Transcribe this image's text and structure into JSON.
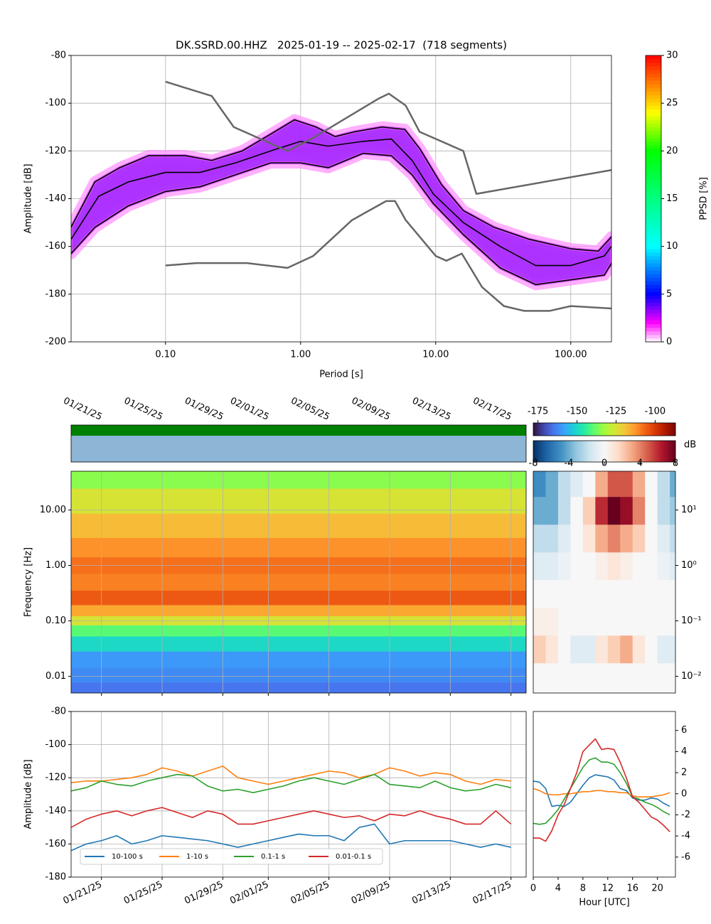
{
  "chart_data": [
    {
      "type": "line",
      "title": "DK.SSRD.00.HHZ   2025-01-19 -- 2025-02-17  (718 segments)",
      "xlabel": "Period [s]",
      "ylabel": "Amplitude [dB]",
      "xscale": "log",
      "xlim": [
        0.02,
        200
      ],
      "ylim": [
        -200,
        -80
      ],
      "xticks": [
        {
          "value": 0.1,
          "label": "0.10"
        },
        {
          "value": 1,
          "label": "1.00"
        },
        {
          "value": 10,
          "label": "10.00"
        },
        {
          "value": 100,
          "label": "100.00"
        }
      ],
      "yticks": [
        -200,
        -180,
        -160,
        -140,
        -120,
        -100,
        -80
      ],
      "grid": true,
      "density_band": true,
      "series": [
        {
          "color": "#000000",
          "x": [
            0.02,
            0.03,
            0.046,
            0.075,
            0.14,
            0.22,
            0.37,
            0.6,
            0.9,
            1.3,
            1.8,
            2.5,
            4,
            5.9,
            7.6,
            11,
            16,
            27,
            49,
            100,
            160,
            200
          ],
          "values": [
            -152,
            -133,
            -127,
            -122,
            -122,
            -124,
            -120,
            -113,
            -107,
            -110,
            -114,
            -112,
            -110,
            -111,
            -119,
            -134,
            -145,
            -152,
            -157,
            -161,
            -162,
            -156
          ]
        },
        {
          "color": "#000000",
          "x": [
            0.02,
            0.032,
            0.053,
            0.1,
            0.18,
            0.33,
            0.6,
            1,
            1.6,
            2.9,
            4.7,
            6.7,
            9.6,
            16,
            30,
            55,
            100,
            177,
            200
          ],
          "values": [
            -157,
            -139,
            -133,
            -129,
            -129,
            -125,
            -120,
            -116,
            -118,
            -116,
            -115,
            -124,
            -138,
            -150,
            -160,
            -168,
            -168,
            -164,
            -160
          ]
        },
        {
          "color": "#000000",
          "x": [
            0.02,
            0.03,
            0.053,
            0.1,
            0.18,
            0.33,
            0.6,
            1,
            1.6,
            2.9,
            4.7,
            6.7,
            9.6,
            16,
            30,
            55,
            100,
            177,
            200
          ],
          "values": [
            -163,
            -152,
            -143,
            -137,
            -135,
            -130,
            -125,
            -125,
            -127,
            -121,
            -122,
            -130,
            -142,
            -155,
            -169,
            -176,
            -174,
            -172,
            -167
          ]
        },
        {
          "color": "#666666",
          "x": [
            0.1,
            0.22,
            0.32,
            0.8,
            1.2,
            3.8,
            4.5,
            6,
            7.6,
            16,
            20,
            200
          ],
          "values": [
            -91,
            -97,
            -110,
            -120,
            -115,
            -98,
            -96,
            -101,
            -112,
            -120,
            -138,
            -128
          ]
        },
        {
          "color": "#666666",
          "x": [
            0.1,
            0.17,
            0.4,
            0.8,
            1.24,
            2.4,
            4.3,
            5,
            6,
            10,
            12,
            15.6,
            22,
            32,
            45,
            70,
            100,
            200
          ],
          "values": [
            -168,
            -167,
            -167,
            -169,
            -164,
            -149,
            -141,
            -141,
            -149,
            -164,
            -166,
            -163,
            -177,
            -185,
            -187,
            -187,
            -185,
            -186
          ]
        }
      ],
      "colorbar": {
        "label": "PPSD [%]",
        "lim": [
          0,
          30
        ],
        "ticks": [
          0,
          5,
          10,
          15,
          20,
          25,
          30
        ],
        "colormap": [
          {
            "value": 0,
            "color": "#ffffff"
          },
          {
            "value": 2,
            "color": "#ff00ff"
          },
          {
            "value": 3.5,
            "color": "#8000ff"
          },
          {
            "value": 5,
            "color": "#0000ff"
          },
          {
            "value": 10,
            "color": "#00ffff"
          },
          {
            "value": 20,
            "color": "#00ff00"
          },
          {
            "value": 24,
            "color": "#ffff00"
          },
          {
            "value": 30,
            "color": "#ff0000"
          }
        ]
      }
    },
    {
      "type": "heatmap",
      "ylabel": "Frequency [Hz]",
      "xscale": "date",
      "yscale": "log",
      "xlim": [
        "01/19/25",
        "02/18/25"
      ],
      "ylim": [
        0.005,
        50
      ],
      "xticks": [
        "01/21/25",
        "01/25/25",
        "01/29/25",
        "02/01/25",
        "02/05/25",
        "02/09/25",
        "02/13/25",
        "02/17/25"
      ],
      "yticks": [
        {
          "value": 0.01,
          "label": "0.01"
        },
        {
          "value": 0.1,
          "label": "0.10"
        },
        {
          "value": 1,
          "label": "1.00"
        },
        {
          "value": 10,
          "label": "10.00"
        }
      ],
      "grid": true,
      "xtick_labels": "top",
      "frequencies": [
        0.006,
        0.01,
        0.02,
        0.04,
        0.07,
        0.1,
        0.15,
        0.25,
        0.5,
        1,
        2,
        5,
        15,
        40
      ],
      "values": [
        -165,
        -162,
        -160,
        -150,
        -140,
        -125,
        -115,
        -105,
        -110,
        -108,
        -112,
        -118,
        -125,
        -135
      ],
      "colorbar": {
        "lim": [
          -178,
          -87
        ],
        "ticks": [
          -175,
          -150,
          -125,
          -100
        ],
        "colormap": [
          "#30123b",
          "#4145ab",
          "#4675ed",
          "#39a2fc",
          "#1bcfd4",
          "#24eca6",
          "#61fc6c",
          "#a4fc3b",
          "#d1e834",
          "#f3c63a",
          "#fe9b2d",
          "#f36315",
          "#d93806",
          "#b11901",
          "#7a0402"
        ]
      }
    },
    {
      "type": "heatmap",
      "yscale": "log",
      "xlim": [
        0,
        22.9
      ],
      "ylim": [
        0.005,
        50
      ],
      "yaxis": "right",
      "yticks": [
        {
          "value": 0.01,
          "label": "10⁻²"
        },
        {
          "value": 0.1,
          "label": "10⁻¹"
        },
        {
          "value": 1,
          "label": "10⁰"
        },
        {
          "value": 10,
          "label": "10¹"
        }
      ],
      "x": [
        0,
        2,
        4,
        6,
        8,
        10,
        12,
        14,
        16,
        18,
        20,
        22
      ],
      "frequencies": [
        0.01,
        0.03,
        0.1,
        0.3,
        1,
        3,
        10,
        30
      ],
      "values": [
        [
          0,
          0,
          0,
          0,
          0,
          0,
          0,
          0,
          0,
          0,
          0,
          0
        ],
        [
          2,
          1,
          0,
          -1,
          -1,
          1,
          2,
          3,
          1,
          0,
          -1,
          -1
        ],
        [
          0.5,
          0.5,
          0,
          0,
          0,
          0,
          0,
          0,
          0,
          0,
          0,
          0
        ],
        [
          0,
          0,
          0,
          0,
          0,
          0,
          0,
          0,
          0,
          0,
          0,
          0
        ],
        [
          -1,
          -1,
          -0.5,
          0,
          0,
          0.5,
          1,
          0.5,
          0,
          0,
          -0.5,
          -1
        ],
        [
          -2,
          -2,
          -1,
          0,
          1,
          3,
          4,
          3,
          2,
          0,
          -1,
          -2
        ],
        [
          -4,
          -4,
          -2,
          0,
          2,
          6,
          8,
          7,
          4,
          0,
          -2,
          -3
        ],
        [
          -5,
          -4,
          -2,
          -1,
          0,
          3,
          5,
          5,
          3,
          0,
          -2,
          -4
        ]
      ],
      "colorbar": {
        "label": "dB",
        "lim": [
          -8,
          8
        ],
        "ticks": [
          -8,
          -4,
          0,
          4,
          8
        ],
        "colormap": [
          "#053061",
          "#2166ac",
          "#4393c3",
          "#92c5de",
          "#d1e5f0",
          "#f7f7f7",
          "#fddbc7",
          "#f4a582",
          "#d6604d",
          "#b2182b",
          "#67001f"
        ]
      }
    },
    {
      "type": "line",
      "ylabel": "Amplitude [dB]",
      "xscale": "date",
      "xlim": [
        "01/19/25",
        "02/18/25"
      ],
      "ylim": [
        -180,
        -80
      ],
      "xticks": [
        "01/21/25",
        "01/25/25",
        "01/29/25",
        "02/01/25",
        "02/05/25",
        "02/09/25",
        "02/13/25",
        "02/17/25"
      ],
      "yticks": [
        -180,
        -160,
        -140,
        -120,
        -100,
        -80
      ],
      "grid": true,
      "legend": "lower left",
      "x": [
        "01/19/25",
        "01/20/25",
        "01/21/25",
        "01/22/25",
        "01/23/25",
        "01/24/25",
        "01/25/25",
        "01/26/25",
        "01/27/25",
        "01/28/25",
        "01/29/25",
        "01/30/25",
        "01/31/25",
        "02/01/25",
        "02/02/25",
        "02/03/25",
        "02/04/25",
        "02/05/25",
        "02/06/25",
        "02/07/25",
        "02/08/25",
        "02/09/25",
        "02/10/25",
        "02/11/25",
        "02/12/25",
        "02/13/25",
        "02/14/25",
        "02/15/25",
        "02/16/25",
        "02/17/25"
      ],
      "series": [
        {
          "name": "10-100 s",
          "color": "#1f77b4",
          "values": [
            -164,
            -160,
            -158,
            -155,
            -160,
            -158,
            -155,
            -156,
            -157,
            -158,
            -160,
            -162,
            -160,
            -158,
            -156,
            -154,
            -155,
            -155,
            -158,
            -150,
            -148,
            -160,
            -158,
            -158,
            -158,
            -158,
            -160,
            -162,
            -160,
            -162
          ]
        },
        {
          "name": "1-10 s",
          "color": "#ff7f0e",
          "values": [
            -123,
            -122,
            -122,
            -121,
            -120,
            -118,
            -114,
            -116,
            -119,
            -116,
            -113,
            -120,
            -122,
            -124,
            -122,
            -120,
            -118,
            -116,
            -117,
            -120,
            -118,
            -114,
            -116,
            -119,
            -117,
            -118,
            -122,
            -124,
            -121,
            -122
          ]
        },
        {
          "name": "0.1-1 s",
          "color": "#2ca02c",
          "values": [
            -128,
            -126,
            -122,
            -124,
            -125,
            -122,
            -120,
            -118,
            -119,
            -125,
            -128,
            -127,
            -129,
            -127,
            -125,
            -122,
            -120,
            -122,
            -124,
            -121,
            -118,
            -124,
            -125,
            -126,
            -122,
            -126,
            -128,
            -127,
            -124,
            -126
          ]
        },
        {
          "name": "0.01-0.1 s",
          "color": "#d62728",
          "values": [
            -150,
            -145,
            -142,
            -140,
            -143,
            -140,
            -138,
            -141,
            -144,
            -140,
            -142,
            -148,
            -148,
            -146,
            -144,
            -142,
            -140,
            -142,
            -144,
            -143,
            -146,
            -142,
            -143,
            -140,
            -143,
            -145,
            -148,
            -148,
            -140,
            -148
          ]
        }
      ]
    },
    {
      "type": "line",
      "xlabel": "Hour [UTC]",
      "xlim": [
        0,
        22.9
      ],
      "ylim": [
        -7.9,
        7.8
      ],
      "yaxis": "right",
      "xticks": [
        0,
        4,
        8,
        12,
        16,
        20
      ],
      "yticks": [
        -6,
        -4,
        -2,
        0,
        2,
        4,
        6
      ],
      "grid": false,
      "x": [
        0,
        1,
        2,
        3,
        4,
        5,
        6,
        7,
        8,
        9,
        10,
        11,
        12,
        13,
        14,
        15,
        16,
        17,
        18,
        19,
        20,
        21,
        22
      ],
      "series": [
        {
          "color": "#1f77b4",
          "values": [
            1.2,
            1.1,
            0.5,
            -1.2,
            -1.1,
            -1.2,
            -0.8,
            0,
            0.8,
            1.5,
            1.8,
            1.7,
            1.6,
            1.3,
            0.5,
            0.3,
            -0.4,
            -0.6,
            -0.6,
            -0.4,
            -0.5,
            -0.9,
            -1.2
          ]
        },
        {
          "color": "#ff7f0e",
          "values": [
            0.5,
            0.3,
            0,
            -0.1,
            -0.1,
            0,
            0,
            0.1,
            0.2,
            0.2,
            0.3,
            0.3,
            0.2,
            0.2,
            0.1,
            0.1,
            -0.2,
            -0.3,
            -0.3,
            -0.3,
            -0.2,
            -0.1,
            0.1
          ]
        },
        {
          "color": "#2ca02c",
          "values": [
            -2.8,
            -2.9,
            -2.8,
            -2.2,
            -1.5,
            -0.5,
            0.5,
            1.5,
            2.5,
            3.2,
            3.4,
            3,
            3,
            2.8,
            2,
            1,
            -0.3,
            -0.5,
            -0.8,
            -1,
            -1.3,
            -1.7,
            -2
          ]
        },
        {
          "color": "#d62728",
          "values": [
            -4.2,
            -4.2,
            -4.5,
            -3.5,
            -2,
            -1,
            0.5,
            2,
            4,
            4.6,
            5.2,
            4.2,
            4.3,
            4.2,
            3,
            1.5,
            -0.3,
            -0.8,
            -1.5,
            -2.2,
            -2.5,
            -3,
            -3.6
          ]
        }
      ]
    }
  ]
}
